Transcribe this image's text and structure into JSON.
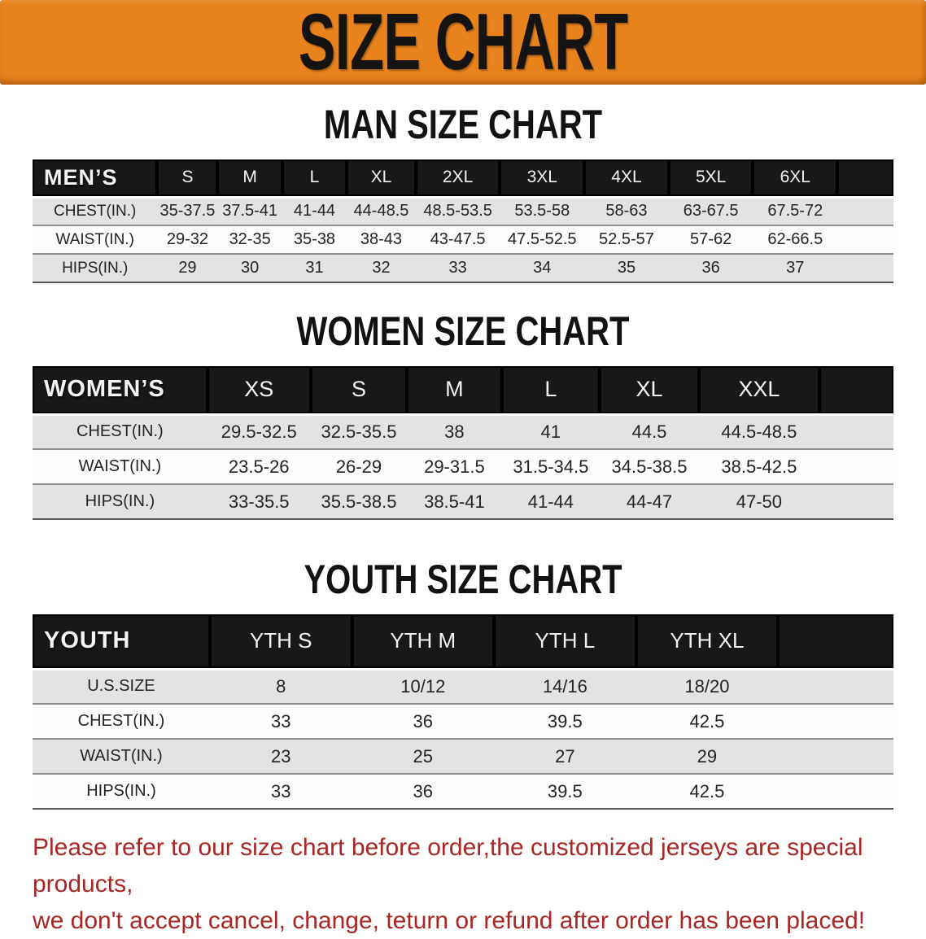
{
  "banner": {
    "title": "SIZE CHART"
  },
  "colors": {
    "banner_bg": "#e8821d",
    "header_bar": "#181818",
    "row_alt": "#e3e3e3",
    "disclaimer_text": "#a82624"
  },
  "sections": [
    {
      "heading": "MAN SIZE CHART",
      "header_label": "MEN’S",
      "columns": [
        "S",
        "M",
        "L",
        "XL",
        "2XL",
        "3XL",
        "4XL",
        "5XL",
        "6XL"
      ],
      "rows": [
        {
          "label": "CHEST(IN.)",
          "values": [
            "35-37.5",
            "37.5-41",
            "41-44",
            "44-48.5",
            "48.5-53.5",
            "53.5-58",
            "58-63",
            "63-67.5",
            "67.5-72"
          ]
        },
        {
          "label": "WAIST(IN.)",
          "values": [
            "29-32",
            "32-35",
            "35-38",
            "38-43",
            "43-47.5",
            "47.5-52.5",
            "52.5-57",
            "57-62",
            "62-66.5"
          ]
        },
        {
          "label": "HIPS(IN.)",
          "values": [
            "29",
            "30",
            "31",
            "32",
            "33",
            "34",
            "35",
            "36",
            "37"
          ]
        }
      ]
    },
    {
      "heading": "WOMEN SIZE CHART",
      "header_label": "WOMEN’S",
      "columns": [
        "XS",
        "S",
        "M",
        "L",
        "XL",
        "XXL"
      ],
      "rows": [
        {
          "label": "CHEST(IN.)",
          "values": [
            "29.5-32.5",
            "32.5-35.5",
            "38",
            "41",
            "44.5",
            "44.5-48.5"
          ]
        },
        {
          "label": "WAIST(IN.)",
          "values": [
            "23.5-26",
            "26-29",
            "29-31.5",
            "31.5-34.5",
            "34.5-38.5",
            "38.5-42.5"
          ]
        },
        {
          "label": "HIPS(IN.)",
          "values": [
            "33-35.5",
            "35.5-38.5",
            "38.5-41",
            "41-44",
            "44-47",
            "47-50"
          ]
        }
      ]
    },
    {
      "heading": "YOUTH SIZE CHART",
      "header_label": "YOUTH",
      "columns": [
        "YTH S",
        "YTH M",
        "YTH L",
        "YTH XL"
      ],
      "rows": [
        {
          "label": "U.S.SIZE",
          "values": [
            "8",
            "10/12",
            "14/16",
            "18/20"
          ]
        },
        {
          "label": "CHEST(IN.)",
          "values": [
            "33",
            "36",
            "39.5",
            "42.5"
          ]
        },
        {
          "label": "WAIST(IN.)",
          "values": [
            "23",
            "25",
            "27",
            "29"
          ]
        },
        {
          "label": "HIPS(IN.)",
          "values": [
            "33",
            "36",
            "39.5",
            "42.5"
          ]
        }
      ]
    }
  ],
  "footer": {
    "line1": "Please refer to our size chart before order,the customized jerseys are special products,",
    "line2": "we don't accept cancel, change, teturn or refund after order has been placed!"
  }
}
